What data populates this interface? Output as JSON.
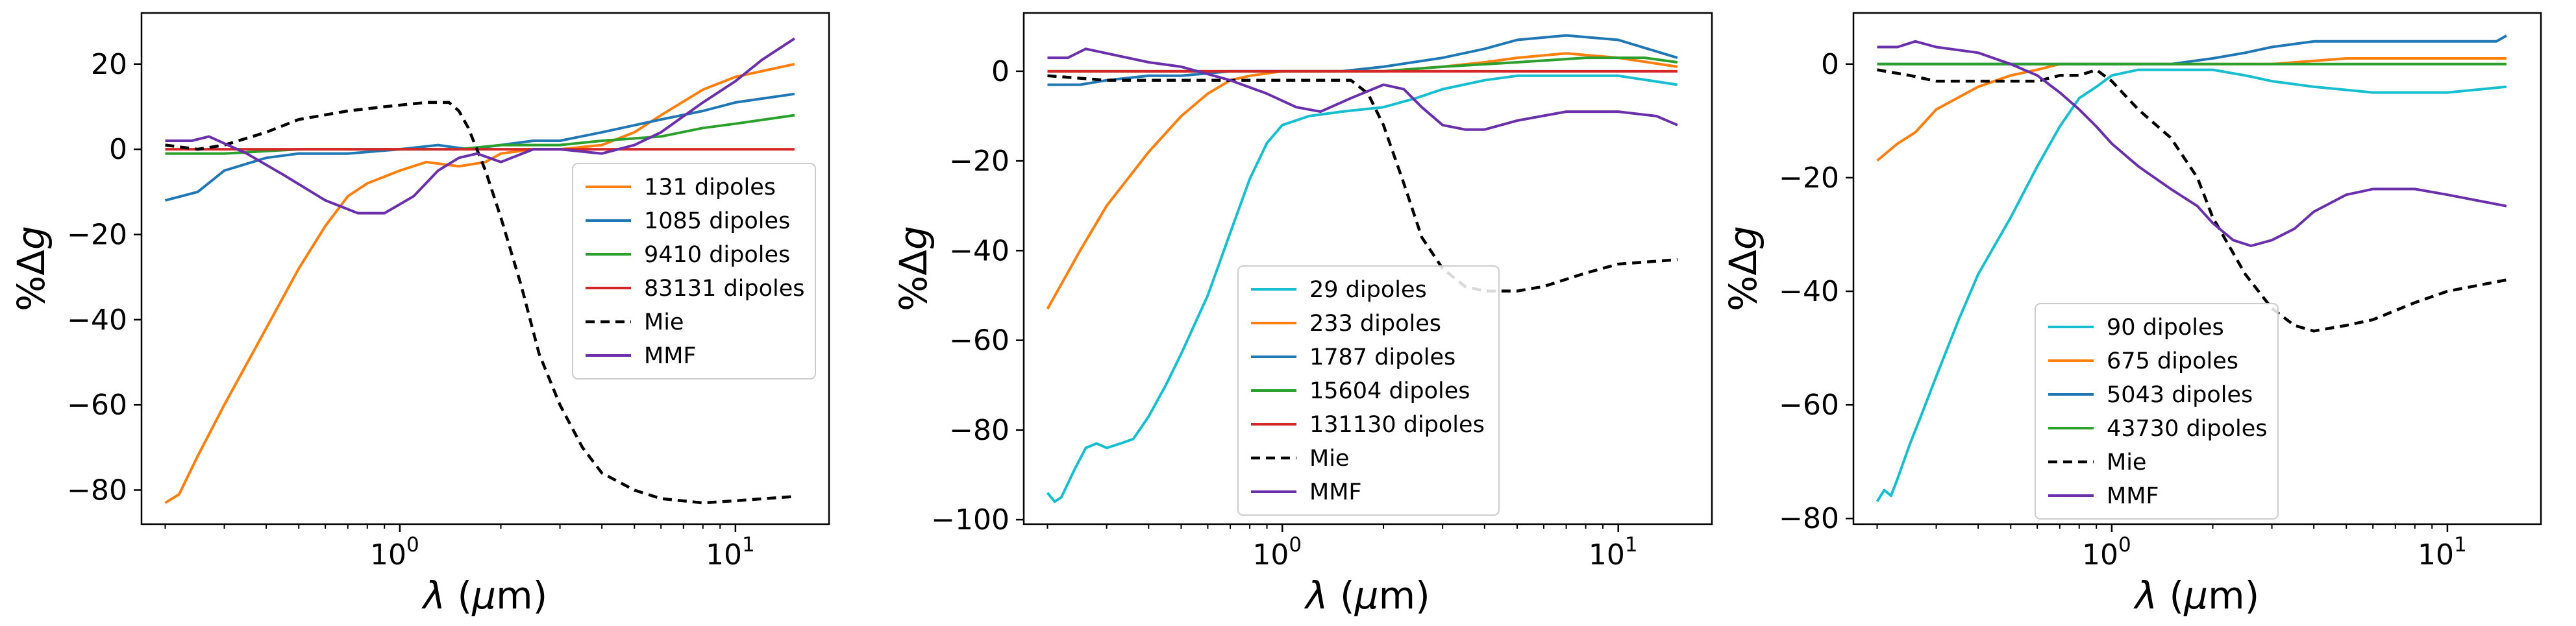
{
  "chart_data": [
    {
      "type": "line",
      "xscale": "log",
      "xlabel_pre": "λ (",
      "xlabel_mu": "μ",
      "xlabel_post": "m)",
      "ylabel_pct": "%Δ",
      "ylabel_g": "g",
      "xlim": [
        0.17,
        19
      ],
      "ylim": [
        -88,
        32
      ],
      "yticks": [
        20,
        0,
        -20,
        -40,
        -60,
        -80
      ],
      "ytick_labels": [
        "20",
        "0",
        "−20",
        "−40",
        "−60",
        "−80"
      ],
      "xticks": [
        1,
        10
      ],
      "xtick_base": "10",
      "xtick_exps": [
        "0",
        "1"
      ],
      "legend_loc": "center-right",
      "series": [
        {
          "name": "131 dipoles",
          "color": "#ff7f0e",
          "dash": "",
          "x": [
            0.2,
            0.22,
            0.25,
            0.3,
            0.4,
            0.5,
            0.6,
            0.7,
            0.8,
            1.0,
            1.2,
            1.5,
            1.8,
            2.0,
            2.5,
            3.0,
            4.0,
            5.0,
            6.0,
            8.0,
            10.0,
            15.0
          ],
          "y": [
            -83,
            -81,
            -72,
            -60,
            -42,
            -28,
            -18,
            -11,
            -8,
            -5,
            -3,
            -4,
            -3,
            -1,
            0,
            0,
            1,
            4,
            8,
            14,
            17,
            20
          ]
        },
        {
          "name": "1085 dipoles",
          "color": "#1f77b4",
          "dash": "",
          "x": [
            0.2,
            0.25,
            0.3,
            0.4,
            0.5,
            0.7,
            1.0,
            1.3,
            1.6,
            2.0,
            2.5,
            3.0,
            4.0,
            6.0,
            8.0,
            10.0,
            15.0
          ],
          "y": [
            -12,
            -10,
            -5,
            -2,
            -1,
            -1,
            0,
            1,
            0,
            1,
            2,
            2,
            4,
            7,
            9,
            11,
            13
          ]
        },
        {
          "name": "9410 dipoles",
          "color": "#2ca02c",
          "dash": "",
          "x": [
            0.2,
            0.3,
            0.5,
            0.7,
            1.0,
            1.5,
            2.0,
            3.0,
            4.0,
            6.0,
            8.0,
            10.0,
            15.0
          ],
          "y": [
            -1,
            -1,
            0,
            0,
            0,
            0,
            1,
            1,
            2,
            3,
            5,
            6,
            8
          ]
        },
        {
          "name": "83131 dipoles",
          "color": "#d62728",
          "dash": "",
          "x": [
            0.2,
            15.0
          ],
          "y": [
            0,
            0
          ]
        },
        {
          "name": "Mie",
          "color": "#000000",
          "dash": "14 9",
          "x": [
            0.2,
            0.25,
            0.3,
            0.4,
            0.5,
            0.7,
            0.9,
            1.2,
            1.4,
            1.5,
            1.6,
            1.8,
            2.0,
            2.3,
            2.6,
            3.0,
            3.5,
            4.0,
            5.0,
            6.0,
            8.0,
            10.0,
            15.0
          ],
          "y": [
            1,
            0,
            1,
            4,
            7,
            9,
            10,
            11,
            11,
            9,
            5,
            -5,
            -16,
            -32,
            -48,
            -60,
            -70,
            -76,
            -80,
            -82,
            -83,
            -82.5,
            -81.5
          ]
        },
        {
          "name": "MMF",
          "color": "#6a2faa",
          "dash": "",
          "x": [
            0.2,
            0.24,
            0.27,
            0.35,
            0.45,
            0.6,
            0.75,
            0.9,
            1.1,
            1.3,
            1.5,
            1.7,
            2.0,
            2.5,
            3.0,
            4.0,
            5.0,
            6.0,
            8.0,
            10.0,
            12.0,
            15.0
          ],
          "y": [
            2,
            2,
            3,
            -1,
            -6,
            -12,
            -15,
            -15,
            -11,
            -5,
            -2,
            -1,
            -3,
            0,
            0,
            -1,
            1,
            4,
            11,
            16,
            21,
            26
          ]
        }
      ]
    },
    {
      "type": "line",
      "xscale": "log",
      "xlabel_pre": "λ (",
      "xlabel_mu": "μ",
      "xlabel_post": "m)",
      "ylabel_pct": "%Δ",
      "ylabel_g": "g",
      "xlim": [
        0.17,
        19
      ],
      "ylim": [
        -101,
        13
      ],
      "yticks": [
        0,
        -20,
        -40,
        -60,
        -80,
        -100
      ],
      "ytick_labels": [
        "0",
        "−20",
        "−40",
        "−60",
        "−80",
        "−100"
      ],
      "xticks": [
        1,
        10
      ],
      "xtick_base": "10",
      "xtick_exps": [
        "0",
        "1"
      ],
      "legend_loc": "lower-center",
      "series": [
        {
          "name": "29 dipoles",
          "color": "#17becf",
          "dash": "",
          "x": [
            0.2,
            0.21,
            0.22,
            0.24,
            0.26,
            0.28,
            0.3,
            0.33,
            0.36,
            0.4,
            0.45,
            0.5,
            0.6,
            0.7,
            0.8,
            0.9,
            1.0,
            1.2,
            1.5,
            2.0,
            2.5,
            3.0,
            4.0,
            5.0,
            7.0,
            10.0,
            15.0
          ],
          "y": [
            -94,
            -96,
            -95,
            -89,
            -84,
            -83,
            -84,
            -83,
            -82,
            -77,
            -70,
            -63,
            -50,
            -36,
            -24,
            -16,
            -12,
            -10,
            -9,
            -8,
            -6,
            -4,
            -2,
            -1,
            -1,
            -1,
            -3
          ]
        },
        {
          "name": "233 dipoles",
          "color": "#ff7f0e",
          "dash": "",
          "x": [
            0.2,
            0.25,
            0.3,
            0.4,
            0.5,
            0.6,
            0.7,
            0.8,
            1.0,
            1.5,
            2.0,
            3.0,
            4.0,
            5.0,
            7.0,
            10.0,
            15.0
          ],
          "y": [
            -53,
            -40,
            -30,
            -18,
            -10,
            -5,
            -2,
            -1,
            0,
            0,
            0,
            1,
            2,
            3,
            4,
            3,
            1
          ]
        },
        {
          "name": "1787 dipoles",
          "color": "#1f77b4",
          "dash": "",
          "x": [
            0.2,
            0.25,
            0.3,
            0.4,
            0.5,
            0.7,
            1.0,
            1.5,
            2.0,
            3.0,
            4.0,
            5.0,
            7.0,
            10.0,
            15.0
          ],
          "y": [
            -3,
            -3,
            -2,
            -1,
            -1,
            0,
            0,
            0,
            1,
            3,
            5,
            7,
            8,
            7,
            3
          ]
        },
        {
          "name": "15604 dipoles",
          "color": "#2ca02c",
          "dash": "",
          "x": [
            0.2,
            0.5,
            1.0,
            2.0,
            3.0,
            5.0,
            8.0,
            12.0,
            15.0
          ],
          "y": [
            0,
            0,
            0,
            0,
            1,
            2,
            3,
            3,
            2
          ]
        },
        {
          "name": "131130 dipoles",
          "color": "#d62728",
          "dash": "",
          "x": [
            0.2,
            15.0
          ],
          "y": [
            0,
            0
          ]
        },
        {
          "name": "Mie",
          "color": "#000000",
          "dash": "14 9",
          "x": [
            0.2,
            0.3,
            0.5,
            0.8,
            1.0,
            1.3,
            1.6,
            1.8,
            2.0,
            2.3,
            2.6,
            3.0,
            3.5,
            4.0,
            5.0,
            6.0,
            8.0,
            10.0,
            15.0
          ],
          "y": [
            -1,
            -2,
            -2,
            -2,
            -2,
            -2,
            -2,
            -5,
            -12,
            -25,
            -37,
            -44,
            -48,
            -49,
            -49,
            -48,
            -45,
            -43,
            -42
          ]
        },
        {
          "name": "MMF",
          "color": "#6a2faa",
          "dash": "",
          "x": [
            0.2,
            0.23,
            0.26,
            0.3,
            0.4,
            0.5,
            0.7,
            0.9,
            1.1,
            1.3,
            1.6,
            2.0,
            2.3,
            2.6,
            3.0,
            3.5,
            4.0,
            5.0,
            7.0,
            10.0,
            13.0,
            15.0
          ],
          "y": [
            3,
            3,
            5,
            4,
            2,
            1,
            -2,
            -5,
            -8,
            -9,
            -6,
            -3,
            -4,
            -8,
            -12,
            -13,
            -13,
            -11,
            -9,
            -9,
            -10,
            -12
          ]
        }
      ]
    },
    {
      "type": "line",
      "xscale": "log",
      "xlabel_pre": "λ (",
      "xlabel_mu": "μ",
      "xlabel_post": "m)",
      "ylabel_pct": "%Δ",
      "ylabel_g": "g",
      "xlim": [
        0.17,
        19
      ],
      "ylim": [
        -81,
        9
      ],
      "yticks": [
        0,
        -20,
        -40,
        -60,
        -80
      ],
      "ytick_labels": [
        "0",
        "−20",
        "−40",
        "−60",
        "−80"
      ],
      "xticks": [
        1,
        10
      ],
      "xtick_base": "10",
      "xtick_exps": [
        "0",
        "1"
      ],
      "legend_loc": "lower-left",
      "series": [
        {
          "name": "90 dipoles",
          "color": "#17becf",
          "dash": "",
          "x": [
            0.2,
            0.21,
            0.22,
            0.23,
            0.25,
            0.27,
            0.3,
            0.35,
            0.4,
            0.5,
            0.6,
            0.7,
            0.8,
            0.9,
            1.0,
            1.2,
            1.5,
            2.0,
            2.5,
            3.0,
            4.0,
            6.0,
            10.0,
            15.0
          ],
          "y": [
            -77,
            -75,
            -76,
            -73,
            -67,
            -62,
            -55,
            -45,
            -37,
            -27,
            -18,
            -11,
            -6,
            -4,
            -2,
            -1,
            -1,
            -1,
            -2,
            -3,
            -4,
            -5,
            -5,
            -4
          ]
        },
        {
          "name": "675 dipoles",
          "color": "#ff7f0e",
          "dash": "",
          "x": [
            0.2,
            0.23,
            0.26,
            0.3,
            0.4,
            0.5,
            0.6,
            0.7,
            0.85,
            1.0,
            1.5,
            2.0,
            3.0,
            5.0,
            8.0,
            12.0,
            15.0
          ],
          "y": [
            -17,
            -14,
            -12,
            -8,
            -4,
            -2,
            -1,
            0,
            0,
            0,
            0,
            0,
            0,
            1,
            1,
            1,
            1
          ]
        },
        {
          "name": "5043 dipoles",
          "color": "#1f77b4",
          "dash": "",
          "x": [
            0.2,
            0.5,
            1.0,
            1.5,
            2.0,
            2.5,
            3.0,
            4.0,
            6.0,
            10.0,
            14.0,
            15.0
          ],
          "y": [
            0,
            0,
            0,
            0,
            1,
            2,
            3,
            4,
            4,
            4,
            4,
            5
          ]
        },
        {
          "name": "43730 dipoles",
          "color": "#2ca02c",
          "dash": "",
          "x": [
            0.2,
            1.0,
            2.0,
            5.0,
            10.0,
            15.0
          ],
          "y": [
            0,
            0,
            0,
            0,
            0,
            0
          ]
        },
        {
          "name": "Mie",
          "color": "#000000",
          "dash": "14 9",
          "x": [
            0.2,
            0.25,
            0.3,
            0.4,
            0.5,
            0.6,
            0.7,
            0.8,
            0.9,
            1.0,
            1.2,
            1.5,
            1.8,
            2.0,
            2.5,
            3.0,
            3.5,
            4.0,
            5.0,
            6.0,
            8.0,
            10.0,
            15.0
          ],
          "y": [
            -1,
            -2,
            -3,
            -3,
            -3,
            -3,
            -2,
            -2,
            -1,
            -3,
            -8,
            -13,
            -20,
            -27,
            -37,
            -43,
            -46,
            -47,
            -46,
            -45,
            -42,
            -40,
            -38
          ]
        },
        {
          "name": "MMF",
          "color": "#6a2faa",
          "dash": "",
          "x": [
            0.2,
            0.23,
            0.26,
            0.3,
            0.4,
            0.5,
            0.6,
            0.7,
            0.8,
            0.9,
            1.0,
            1.2,
            1.5,
            1.8,
            2.0,
            2.3,
            2.6,
            3.0,
            3.5,
            4.0,
            5.0,
            6.0,
            8.0,
            10.0,
            15.0
          ],
          "y": [
            3,
            3,
            4,
            3,
            2,
            0,
            -2,
            -5,
            -8,
            -11,
            -14,
            -18,
            -22,
            -25,
            -28,
            -31,
            -32,
            -31,
            -29,
            -26,
            -23,
            -22,
            -22,
            -23,
            -25
          ]
        }
      ]
    }
  ]
}
